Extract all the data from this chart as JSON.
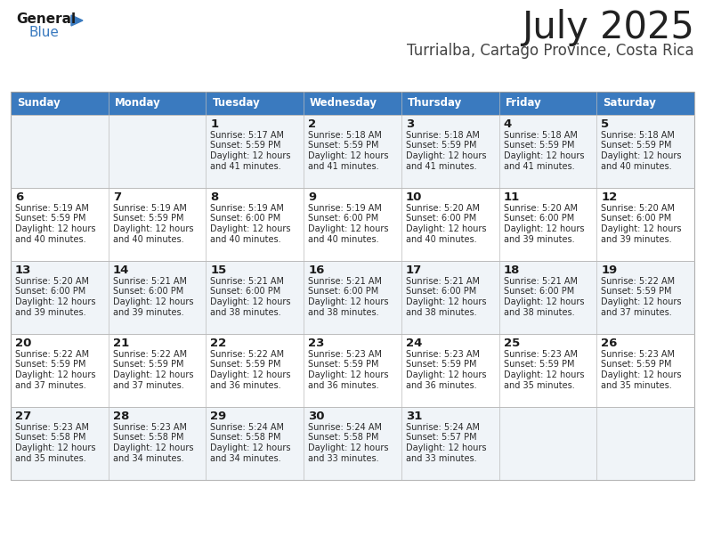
{
  "title": "July 2025",
  "subtitle": "Turrialba, Cartago Province, Costa Rica",
  "header_color": "#3a7abf",
  "header_text_color": "#ffffff",
  "border_color": "#bbbbbb",
  "day_names": [
    "Sunday",
    "Monday",
    "Tuesday",
    "Wednesday",
    "Thursday",
    "Friday",
    "Saturday"
  ],
  "weeks": [
    [
      {
        "day": "",
        "sunrise": "",
        "sunset": "",
        "daylight": ""
      },
      {
        "day": "",
        "sunrise": "",
        "sunset": "",
        "daylight": ""
      },
      {
        "day": "1",
        "sunrise": "5:17 AM",
        "sunset": "5:59 PM",
        "daylight": "12 hours and 41 minutes."
      },
      {
        "day": "2",
        "sunrise": "5:18 AM",
        "sunset": "5:59 PM",
        "daylight": "12 hours and 41 minutes."
      },
      {
        "day": "3",
        "sunrise": "5:18 AM",
        "sunset": "5:59 PM",
        "daylight": "12 hours and 41 minutes."
      },
      {
        "day": "4",
        "sunrise": "5:18 AM",
        "sunset": "5:59 PM",
        "daylight": "12 hours and 41 minutes."
      },
      {
        "day": "5",
        "sunrise": "5:18 AM",
        "sunset": "5:59 PM",
        "daylight": "12 hours and 40 minutes."
      }
    ],
    [
      {
        "day": "6",
        "sunrise": "5:19 AM",
        "sunset": "5:59 PM",
        "daylight": "12 hours and 40 minutes."
      },
      {
        "day": "7",
        "sunrise": "5:19 AM",
        "sunset": "5:59 PM",
        "daylight": "12 hours and 40 minutes."
      },
      {
        "day": "8",
        "sunrise": "5:19 AM",
        "sunset": "6:00 PM",
        "daylight": "12 hours and 40 minutes."
      },
      {
        "day": "9",
        "sunrise": "5:19 AM",
        "sunset": "6:00 PM",
        "daylight": "12 hours and 40 minutes."
      },
      {
        "day": "10",
        "sunrise": "5:20 AM",
        "sunset": "6:00 PM",
        "daylight": "12 hours and 40 minutes."
      },
      {
        "day": "11",
        "sunrise": "5:20 AM",
        "sunset": "6:00 PM",
        "daylight": "12 hours and 39 minutes."
      },
      {
        "day": "12",
        "sunrise": "5:20 AM",
        "sunset": "6:00 PM",
        "daylight": "12 hours and 39 minutes."
      }
    ],
    [
      {
        "day": "13",
        "sunrise": "5:20 AM",
        "sunset": "6:00 PM",
        "daylight": "12 hours and 39 minutes."
      },
      {
        "day": "14",
        "sunrise": "5:21 AM",
        "sunset": "6:00 PM",
        "daylight": "12 hours and 39 minutes."
      },
      {
        "day": "15",
        "sunrise": "5:21 AM",
        "sunset": "6:00 PM",
        "daylight": "12 hours and 38 minutes."
      },
      {
        "day": "16",
        "sunrise": "5:21 AM",
        "sunset": "6:00 PM",
        "daylight": "12 hours and 38 minutes."
      },
      {
        "day": "17",
        "sunrise": "5:21 AM",
        "sunset": "6:00 PM",
        "daylight": "12 hours and 38 minutes."
      },
      {
        "day": "18",
        "sunrise": "5:21 AM",
        "sunset": "6:00 PM",
        "daylight": "12 hours and 38 minutes."
      },
      {
        "day": "19",
        "sunrise": "5:22 AM",
        "sunset": "5:59 PM",
        "daylight": "12 hours and 37 minutes."
      }
    ],
    [
      {
        "day": "20",
        "sunrise": "5:22 AM",
        "sunset": "5:59 PM",
        "daylight": "12 hours and 37 minutes."
      },
      {
        "day": "21",
        "sunrise": "5:22 AM",
        "sunset": "5:59 PM",
        "daylight": "12 hours and 37 minutes."
      },
      {
        "day": "22",
        "sunrise": "5:22 AM",
        "sunset": "5:59 PM",
        "daylight": "12 hours and 36 minutes."
      },
      {
        "day": "23",
        "sunrise": "5:23 AM",
        "sunset": "5:59 PM",
        "daylight": "12 hours and 36 minutes."
      },
      {
        "day": "24",
        "sunrise": "5:23 AM",
        "sunset": "5:59 PM",
        "daylight": "12 hours and 36 minutes."
      },
      {
        "day": "25",
        "sunrise": "5:23 AM",
        "sunset": "5:59 PM",
        "daylight": "12 hours and 35 minutes."
      },
      {
        "day": "26",
        "sunrise": "5:23 AM",
        "sunset": "5:59 PM",
        "daylight": "12 hours and 35 minutes."
      }
    ],
    [
      {
        "day": "27",
        "sunrise": "5:23 AM",
        "sunset": "5:58 PM",
        "daylight": "12 hours and 35 minutes."
      },
      {
        "day": "28",
        "sunrise": "5:23 AM",
        "sunset": "5:58 PM",
        "daylight": "12 hours and 34 minutes."
      },
      {
        "day": "29",
        "sunrise": "5:24 AM",
        "sunset": "5:58 PM",
        "daylight": "12 hours and 34 minutes."
      },
      {
        "day": "30",
        "sunrise": "5:24 AM",
        "sunset": "5:58 PM",
        "daylight": "12 hours and 33 minutes."
      },
      {
        "day": "31",
        "sunrise": "5:24 AM",
        "sunset": "5:57 PM",
        "daylight": "12 hours and 33 minutes."
      },
      {
        "day": "",
        "sunrise": "",
        "sunset": "",
        "daylight": ""
      },
      {
        "day": "",
        "sunrise": "",
        "sunset": "",
        "daylight": ""
      }
    ]
  ]
}
